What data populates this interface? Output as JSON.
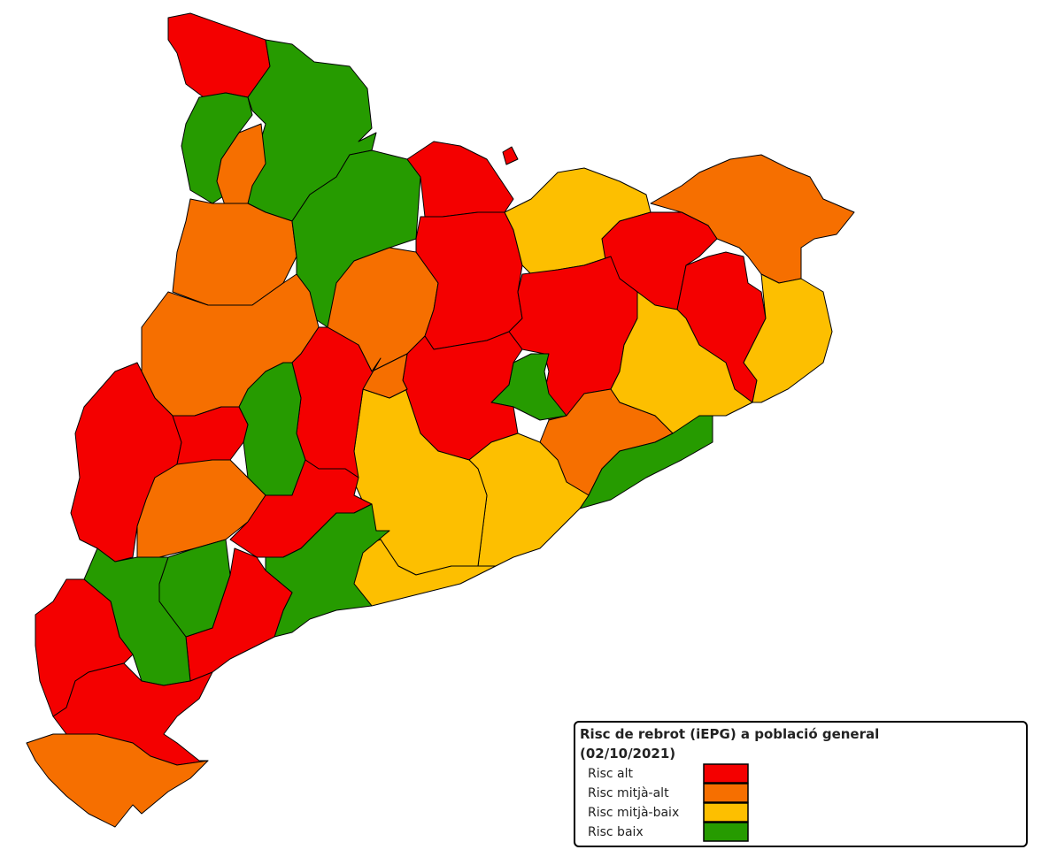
{
  "legend": {
    "title": "Risc de rebrot (iEPG) a població general",
    "subtitle": "(02/10/2021)",
    "entries": [
      {
        "label": "Risc alt",
        "color": "#f40000"
      },
      {
        "label": "Risc mitjà-alt",
        "color": "#f66f00"
      },
      {
        "label": "Risc mitjà-baix",
        "color": "#fdbf00"
      },
      {
        "label": "Risc baix",
        "color": "#269b00"
      }
    ]
  }
}
